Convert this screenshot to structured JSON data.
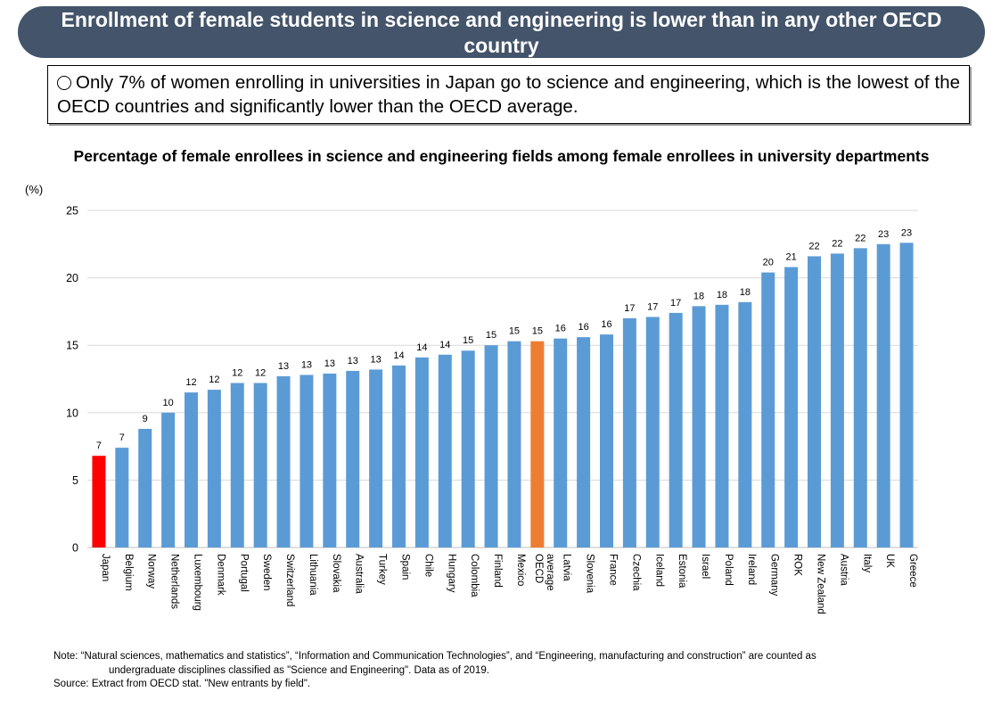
{
  "header": {
    "title": "Enrollment of female students in science and engineering is lower than in any other OECD country"
  },
  "summary": {
    "icon": "circle-icon",
    "text": "Only 7% of women enrolling in universities in Japan go to science and engineering, which is the lowest of the OECD countries and significantly lower than the OECD average."
  },
  "colors": {
    "banner": "#44546a",
    "bar_default": "#5b9bd5",
    "bar_japan": "#ff0000",
    "bar_oecd_average": "#ed7d31"
  },
  "chart_data": {
    "type": "bar",
    "title": "Percentage of female enrollees in science and engineering fields among female enrollees in university departments",
    "ylabel": "(%)",
    "xlabel": "",
    "ylim": [
      0,
      25
    ],
    "yticks": [
      0,
      5,
      10,
      15,
      20,
      25
    ],
    "grid": true,
    "legend": "none",
    "categories": [
      "Japan",
      "Belgium",
      "Norway",
      "Netherlands",
      "Luxembourg",
      "Denmark",
      "Portugal",
      "Sweden",
      "Switzerland",
      "Lithuania",
      "Slovakia",
      "Australia",
      "Turkey",
      "Spain",
      "Chile",
      "Hungary",
      "Colombia",
      "Finland",
      "Mexico",
      "OECD average",
      "Latvia",
      "Slovenia",
      "France",
      "Czechia",
      "Iceland",
      "Estonia",
      "Israel",
      "Poland",
      "Ireland",
      "Germany",
      "ROK",
      "New Zealand",
      "Austria",
      "Italy",
      "UK",
      "Greece"
    ],
    "values": [
      6.8,
      7.4,
      8.8,
      10.0,
      11.5,
      11.7,
      12.2,
      12.2,
      12.7,
      12.8,
      12.9,
      13.1,
      13.2,
      13.5,
      14.1,
      14.3,
      14.6,
      15.0,
      15.3,
      15.3,
      15.5,
      15.6,
      15.8,
      17.0,
      17.1,
      17.4,
      17.9,
      18.0,
      18.2,
      20.4,
      20.8,
      21.6,
      21.8,
      22.2,
      22.5,
      22.6
    ],
    "data_labels": [
      "7",
      "7",
      "9",
      "10",
      "12",
      "12",
      "12",
      "12",
      "13",
      "13",
      "13",
      "13",
      "13",
      "14",
      "14",
      "14",
      "15",
      "15",
      "15",
      "15",
      "16",
      "16",
      "16",
      "17",
      "17",
      "17",
      "18",
      "18",
      "18",
      "20",
      "21",
      "22",
      "22",
      "22",
      "23",
      "23"
    ],
    "highlight": {
      "Japan": "#ff0000",
      "OECD average": "#ed7d31"
    }
  },
  "notes": {
    "note_line1": "Note: “Natural sciences, mathematics and statistics”, “Information and Communication Technologies”, and “Engineering, manufacturing and construction” are counted as",
    "note_line2": "undergraduate disciplines classified as \"Science and Engineering\". Data as of 2019.",
    "source": "Source: Extract from OECD stat. \"New entrants by field\"."
  }
}
